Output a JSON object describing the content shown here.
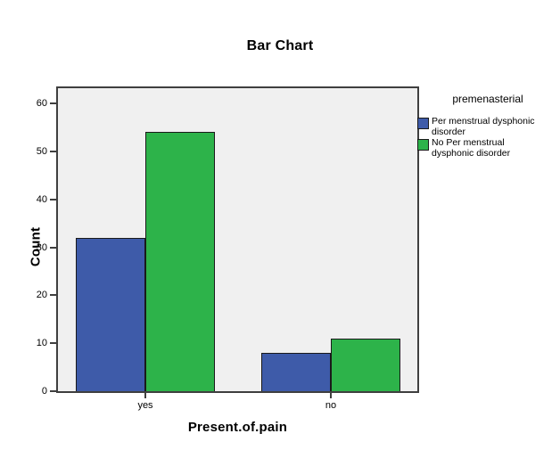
{
  "chart_data": {
    "type": "bar",
    "title": "Bar Chart",
    "categories": [
      "yes",
      "no"
    ],
    "series": [
      {
        "name": "Per menstrual dysphonic disorder",
        "color": "#3E5BA9",
        "values": [
          32,
          8
        ]
      },
      {
        "name": "No Per menstrual dysphonic disorder",
        "color": "#2DB34A",
        "values": [
          54,
          11
        ]
      }
    ],
    "xlabel": "Present.of.pain",
    "ylabel": "Count",
    "ylim": [
      0,
      60
    ],
    "yticks": [
      0,
      10,
      20,
      30,
      40,
      50,
      60
    ],
    "grid": false,
    "legend_title": "premenasterial",
    "legend_position": "right",
    "plot_background": "#F0F0F0",
    "frame_color": "#3F3F3F"
  },
  "legend": {
    "title": "premenasterial",
    "items": [
      {
        "swatch_color": "#3E5BA9",
        "lines": [
          "Per menstrual dysphonic",
          "disorder"
        ]
      },
      {
        "swatch_color": "#2DB34A",
        "lines": [
          "No Per menstrual",
          "dysphonic disorder"
        ]
      }
    ]
  }
}
